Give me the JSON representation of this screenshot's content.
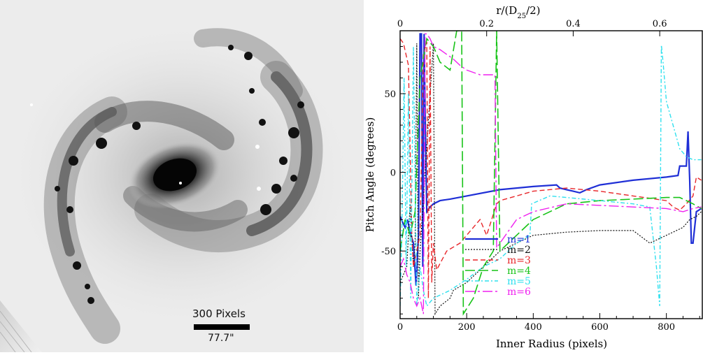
{
  "galaxy_image": {
    "scale_bar_label_top": "300 Pixels",
    "scale_bar_label_bottom": "77.7\""
  },
  "chart_data": {
    "type": "line",
    "title": "",
    "xlabel": "Inner Radius (pixels)",
    "ylabel": "Pitch Angle (degrees)",
    "top_xlabel": "r/(D",
    "top_xlabel_sub": "25",
    "top_xlabel_end": "/2)",
    "xlim": [
      0,
      910
    ],
    "ylim": [
      -93,
      90
    ],
    "top_xlim": [
      0,
      0.7
    ],
    "x_ticks": [
      "0",
      "200",
      "400",
      "600",
      "800"
    ],
    "y_ticks": [
      "-50",
      "0",
      "50"
    ],
    "top_ticks": [
      "0",
      "0.2",
      "0.4",
      "0.6"
    ],
    "legend_position": "bottom-center",
    "series": [
      {
        "name": "m=1",
        "color": "#1f2fd6",
        "dash": "",
        "width": 2.2,
        "x": [
          0,
          8,
          15,
          22,
          30,
          40,
          48,
          55,
          60,
          64,
          68,
          72,
          75,
          80,
          90,
          100,
          120,
          150,
          200,
          300,
          400,
          470,
          480,
          500,
          520,
          540,
          560,
          600,
          700,
          800,
          835,
          840,
          860,
          865,
          870,
          875,
          880,
          890,
          905
        ],
        "y": [
          -28,
          -32,
          -35,
          -30,
          -38,
          -45,
          -72,
          -40,
          88,
          88,
          -60,
          88,
          40,
          -25,
          -22,
          -20,
          -18,
          -17,
          -15,
          -11,
          -9,
          -8,
          -10,
          -11,
          -12,
          -13,
          -11,
          -8,
          -5,
          -3,
          -2,
          4,
          4,
          26,
          -5,
          -45,
          -45,
          -25,
          -23
        ]
      },
      {
        "name": "m=2",
        "color": "#111111",
        "dash": "2,2",
        "width": 1.2,
        "x": [
          0,
          20,
          30,
          40,
          45,
          50,
          55,
          60,
          100,
          105,
          120,
          150,
          160,
          200,
          250,
          300,
          400,
          500,
          600,
          700,
          750,
          800,
          850,
          870,
          890,
          905
        ],
        "y": [
          -70,
          -60,
          -20,
          -60,
          -45,
          82,
          -80,
          -50,
          82,
          -90,
          -85,
          -80,
          -75,
          -70,
          -60,
          -50,
          -40,
          -38,
          -37,
          -37,
          -45,
          -40,
          -35,
          -30,
          -28,
          -25
        ]
      },
      {
        "name": "m=3",
        "color": "#e8262a",
        "dash": "7,4",
        "width": 1.4,
        "x": [
          0,
          10,
          25,
          35,
          40,
          60,
          70,
          80,
          85,
          90,
          95,
          100,
          110,
          140,
          180,
          240,
          260,
          290,
          300,
          350,
          400,
          500,
          600,
          700,
          800,
          820,
          840,
          860,
          880,
          890,
          905
        ],
        "y": [
          85,
          82,
          68,
          -40,
          -60,
          -40,
          75,
          83,
          -80,
          80,
          -70,
          -45,
          -62,
          -50,
          -45,
          -30,
          -40,
          -20,
          -18,
          -15,
          -12,
          -10,
          -12,
          -15,
          -18,
          -22,
          -24,
          -20,
          -15,
          -3,
          -5
        ]
      },
      {
        "name": "m=4",
        "color": "#17c317",
        "dash": "14,5",
        "width": 1.6,
        "x": [
          0,
          15,
          30,
          45,
          60,
          80,
          100,
          120,
          150,
          170,
          185,
          190,
          220,
          250,
          280,
          290,
          300,
          350,
          400,
          500,
          600,
          700,
          800,
          840,
          860,
          880,
          905
        ],
        "y": [
          -50,
          -30,
          -40,
          -25,
          60,
          85,
          80,
          70,
          65,
          90,
          90,
          -90,
          -80,
          -60,
          -50,
          90,
          -50,
          -40,
          -30,
          -20,
          -18,
          -17,
          -16,
          -16,
          -18,
          -20,
          -23
        ]
      },
      {
        "name": "m=5",
        "color": "#2fe0ee",
        "dash": "6,3,2,3",
        "width": 1.4,
        "x": [
          0,
          5,
          12,
          18,
          25,
          32,
          40,
          50,
          60,
          70,
          80,
          100,
          150,
          200,
          250,
          300,
          350,
          390,
          395,
          450,
          500,
          600,
          700,
          750,
          770,
          780,
          785,
          790,
          800,
          820,
          840,
          860,
          880,
          905
        ],
        "y": [
          -85,
          -40,
          60,
          -60,
          50,
          -80,
          80,
          -85,
          -60,
          -75,
          -85,
          -80,
          -75,
          -68,
          -60,
          -55,
          -45,
          -40,
          -20,
          -15,
          -16,
          -18,
          -20,
          -22,
          -60,
          -85,
          81,
          70,
          45,
          30,
          15,
          10,
          8,
          8
        ]
      },
      {
        "name": "m=6",
        "color": "#ef20ef",
        "dash": "14,4,3,4",
        "width": 1.4,
        "x": [
          0,
          10,
          20,
          30,
          40,
          50,
          60,
          70,
          75,
          80,
          90,
          100,
          120,
          140,
          160,
          180,
          200,
          240,
          285,
          290,
          300,
          350,
          400,
          500,
          600,
          700,
          800,
          850,
          880,
          905
        ],
        "y": [
          -60,
          -55,
          -65,
          -70,
          -80,
          -85,
          -80,
          -90,
          88,
          88,
          85,
          80,
          78,
          75,
          72,
          68,
          65,
          62,
          62,
          -48,
          -45,
          -30,
          -25,
          -20,
          -21,
          -22,
          -23,
          -25,
          -23,
          -22
        ]
      }
    ]
  }
}
